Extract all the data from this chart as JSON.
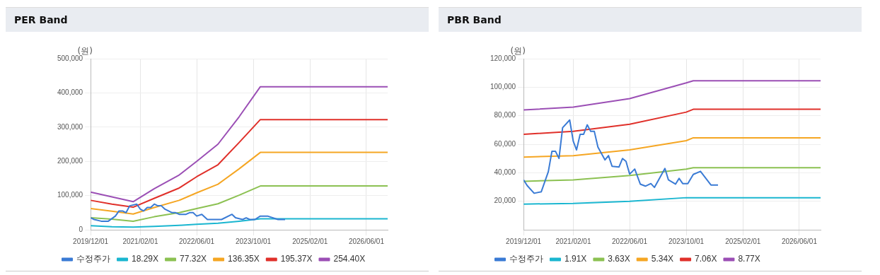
{
  "chart_data": [
    {
      "type": "line",
      "title": "PER Band",
      "ylabel": "(원)",
      "grid": true,
      "legend": "bottom",
      "marker": "none",
      "line_style": "solid",
      "xlim": [
        "2019-12-01",
        "2026-12-01"
      ],
      "xticks": [
        {
          "value": "2019-12-01",
          "label": "2019/12/01"
        },
        {
          "value": "2021-02-01",
          "label": "2021/02/01"
        },
        {
          "value": "2022-06-01",
          "label": "2022/06/01"
        },
        {
          "value": "2023-10-01",
          "label": "2023/10/01"
        },
        {
          "value": "2025-02-01",
          "label": "2025/02/01"
        },
        {
          "value": "2026-06-01",
          "label": "2026/06/01"
        }
      ],
      "ylim": [
        0,
        500000
      ],
      "yticks": [
        {
          "value": 0,
          "label": "0"
        },
        {
          "value": 100000,
          "label": "100,000"
        },
        {
          "value": 200000,
          "label": "200,000"
        },
        {
          "value": 300000,
          "label": "300,000"
        },
        {
          "value": 400000,
          "label": "400,000"
        },
        {
          "value": 500000,
          "label": "500,000"
        }
      ],
      "series": [
        {
          "name": "수정주가",
          "color": "#3a7bd5",
          "x": [
            "2019-12-01",
            "2020-01-01",
            "2020-03-01",
            "2020-05-01",
            "2020-07-01",
            "2020-08-01",
            "2020-09-01",
            "2020-10-01",
            "2020-11-01",
            "2021-01-01",
            "2021-02-01",
            "2021-03-01",
            "2021-04-01",
            "2021-05-01",
            "2021-06-01",
            "2021-07-01",
            "2021-08-01",
            "2021-09-01",
            "2021-11-01",
            "2021-12-01",
            "2022-01-01",
            "2022-03-01",
            "2022-04-01",
            "2022-05-01",
            "2022-06-01",
            "2022-07-15",
            "2022-09-01",
            "2022-10-15",
            "2022-12-01",
            "2023-01-01",
            "2023-04-01",
            "2023-05-01",
            "2023-07-01",
            "2023-08-01",
            "2023-09-01",
            "2023-10-15",
            "2023-12-01",
            "2024-02-01",
            "2024-05-01",
            "2024-07-01"
          ],
          "values": [
            35000,
            30000,
            25000,
            25000,
            40000,
            55000,
            55000,
            50000,
            70000,
            75000,
            60000,
            55000,
            65000,
            65000,
            75000,
            70000,
            70000,
            60000,
            50000,
            50000,
            45000,
            45000,
            50000,
            50000,
            40000,
            45000,
            30000,
            30000,
            30000,
            30000,
            45000,
            35000,
            30000,
            35000,
            30000,
            30000,
            40000,
            40000,
            30000,
            30000
          ]
        },
        {
          "name": "18.29X",
          "color": "#1ab6d0",
          "x": [
            "2019-12-01",
            "2020-06-01",
            "2020-12-01",
            "2021-06-01",
            "2022-01-01",
            "2022-06-01",
            "2022-12-01",
            "2023-06-01",
            "2023-12-01",
            "2026-12-01"
          ],
          "values": [
            12000,
            9000,
            8000,
            10000,
            13000,
            16000,
            19000,
            25000,
            32000,
            32000
          ]
        },
        {
          "name": "77.32X",
          "color": "#8cc152",
          "x": [
            "2019-12-01",
            "2020-06-01",
            "2020-12-01",
            "2021-06-01",
            "2022-01-01",
            "2022-06-01",
            "2022-12-01",
            "2023-06-01",
            "2023-12-01",
            "2026-12-01"
          ],
          "values": [
            35000,
            31000,
            25000,
            38000,
            50000,
            62000,
            76000,
            101000,
            128000,
            128000
          ]
        },
        {
          "name": "136.35X",
          "color": "#f5a623",
          "x": [
            "2019-12-01",
            "2020-06-01",
            "2020-12-01",
            "2021-06-01",
            "2022-01-01",
            "2022-06-01",
            "2022-12-01",
            "2023-06-01",
            "2023-12-01",
            "2026-12-01"
          ],
          "values": [
            62000,
            54000,
            46000,
            65000,
            86000,
            108000,
            133000,
            178000,
            226000,
            226000
          ]
        },
        {
          "name": "195.37X",
          "color": "#e0302a",
          "x": [
            "2019-12-01",
            "2020-06-01",
            "2020-12-01",
            "2021-06-01",
            "2022-01-01",
            "2022-06-01",
            "2022-12-01",
            "2023-06-01",
            "2023-12-01",
            "2026-12-01"
          ],
          "values": [
            86000,
            75000,
            66000,
            92000,
            122000,
            155000,
            190000,
            255000,
            322000,
            322000
          ]
        },
        {
          "name": "254.40X",
          "color": "#9b4fb5",
          "x": [
            "2019-12-01",
            "2020-06-01",
            "2020-12-01",
            "2021-06-01",
            "2022-01-01",
            "2022-06-01",
            "2022-12-01",
            "2023-06-01",
            "2023-12-01",
            "2026-12-01"
          ],
          "values": [
            110000,
            96000,
            82000,
            120000,
            160000,
            200000,
            250000,
            330000,
            418000,
            418000
          ]
        }
      ]
    },
    {
      "type": "line",
      "title": "PBR Band",
      "ylabel": "(원)",
      "grid": true,
      "legend": "bottom",
      "marker": "none",
      "line_style": "solid",
      "xlim": [
        "2019-12-01",
        "2026-12-01"
      ],
      "xticks": [
        {
          "value": "2019-12-01",
          "label": "2019/12/01"
        },
        {
          "value": "2021-02-01",
          "label": "2021/02/01"
        },
        {
          "value": "2022-06-01",
          "label": "2022/06/01"
        },
        {
          "value": "2023-10-01",
          "label": "2023/10/01"
        },
        {
          "value": "2025-02-01",
          "label": "2025/02/01"
        },
        {
          "value": "2026-06-01",
          "label": "2026/06/01"
        }
      ],
      "ylim": [
        0,
        120000
      ],
      "yticks": [
        {
          "value": 20000,
          "label": "20,000"
        },
        {
          "value": 40000,
          "label": "40,000"
        },
        {
          "value": 60000,
          "label": "60,000"
        },
        {
          "value": 80000,
          "label": "80,000"
        },
        {
          "value": 100000,
          "label": "100,000"
        },
        {
          "value": 120000,
          "label": "120,000"
        }
      ],
      "series": [
        {
          "name": "수정주가",
          "color": "#3a7bd5",
          "x": [
            "2019-12-01",
            "2020-01-01",
            "2020-03-01",
            "2020-05-01",
            "2020-07-01",
            "2020-08-01",
            "2020-09-01",
            "2020-10-01",
            "2020-11-01",
            "2021-01-01",
            "2021-02-01",
            "2021-03-01",
            "2021-04-01",
            "2021-05-01",
            "2021-06-01",
            "2021-07-01",
            "2021-08-01",
            "2021-09-01",
            "2021-11-01",
            "2021-12-01",
            "2022-01-01",
            "2022-03-01",
            "2022-04-01",
            "2022-05-01",
            "2022-06-01",
            "2022-07-15",
            "2022-09-01",
            "2022-10-15",
            "2022-12-01",
            "2023-01-01",
            "2023-04-01",
            "2023-05-01",
            "2023-07-01",
            "2023-08-01",
            "2023-09-01",
            "2023-10-15",
            "2023-12-01",
            "2024-02-01",
            "2024-05-01",
            "2024-07-01"
          ],
          "values": [
            35000,
            31000,
            25600,
            26600,
            40700,
            55000,
            55000,
            50000,
            71600,
            77000,
            62000,
            56000,
            67000,
            67000,
            73600,
            69000,
            69000,
            58000,
            49000,
            52000,
            44500,
            44000,
            50000,
            48000,
            39000,
            42600,
            32000,
            30600,
            32400,
            29700,
            43000,
            35000,
            32000,
            36000,
            32400,
            32400,
            38800,
            41000,
            31400,
            31400
          ]
        },
        {
          "name": "1.91X",
          "color": "#1ab6d0",
          "x": [
            "2019-12-01",
            "2021-02-01",
            "2022-06-01",
            "2023-10-01",
            "2023-12-01",
            "2026-12-01"
          ],
          "values": [
            18000,
            18500,
            20000,
            22500,
            22500,
            22500
          ]
        },
        {
          "name": "3.63X",
          "color": "#8cc152",
          "x": [
            "2019-12-01",
            "2021-02-01",
            "2022-06-01",
            "2023-10-01",
            "2023-12-01",
            "2026-12-01"
          ],
          "values": [
            34000,
            35000,
            38000,
            42500,
            43500,
            43500
          ]
        },
        {
          "name": "5.34X",
          "color": "#f5a623",
          "x": [
            "2019-12-01",
            "2021-02-01",
            "2022-06-01",
            "2023-10-01",
            "2023-12-01",
            "2026-12-01"
          ],
          "values": [
            51000,
            52000,
            56000,
            62500,
            64500,
            64500
          ]
        },
        {
          "name": "7.06X",
          "color": "#e0302a",
          "x": [
            "2019-12-01",
            "2021-02-01",
            "2022-06-01",
            "2023-10-01",
            "2023-12-01",
            "2026-12-01"
          ],
          "values": [
            67000,
            69000,
            74000,
            82500,
            84500,
            84500
          ]
        },
        {
          "name": "8.77X",
          "color": "#9b4fb5",
          "x": [
            "2019-12-01",
            "2021-02-01",
            "2022-06-01",
            "2023-10-01",
            "2023-12-01",
            "2026-12-01"
          ],
          "values": [
            84000,
            86000,
            92000,
            103000,
            104500,
            104500
          ]
        }
      ]
    }
  ]
}
